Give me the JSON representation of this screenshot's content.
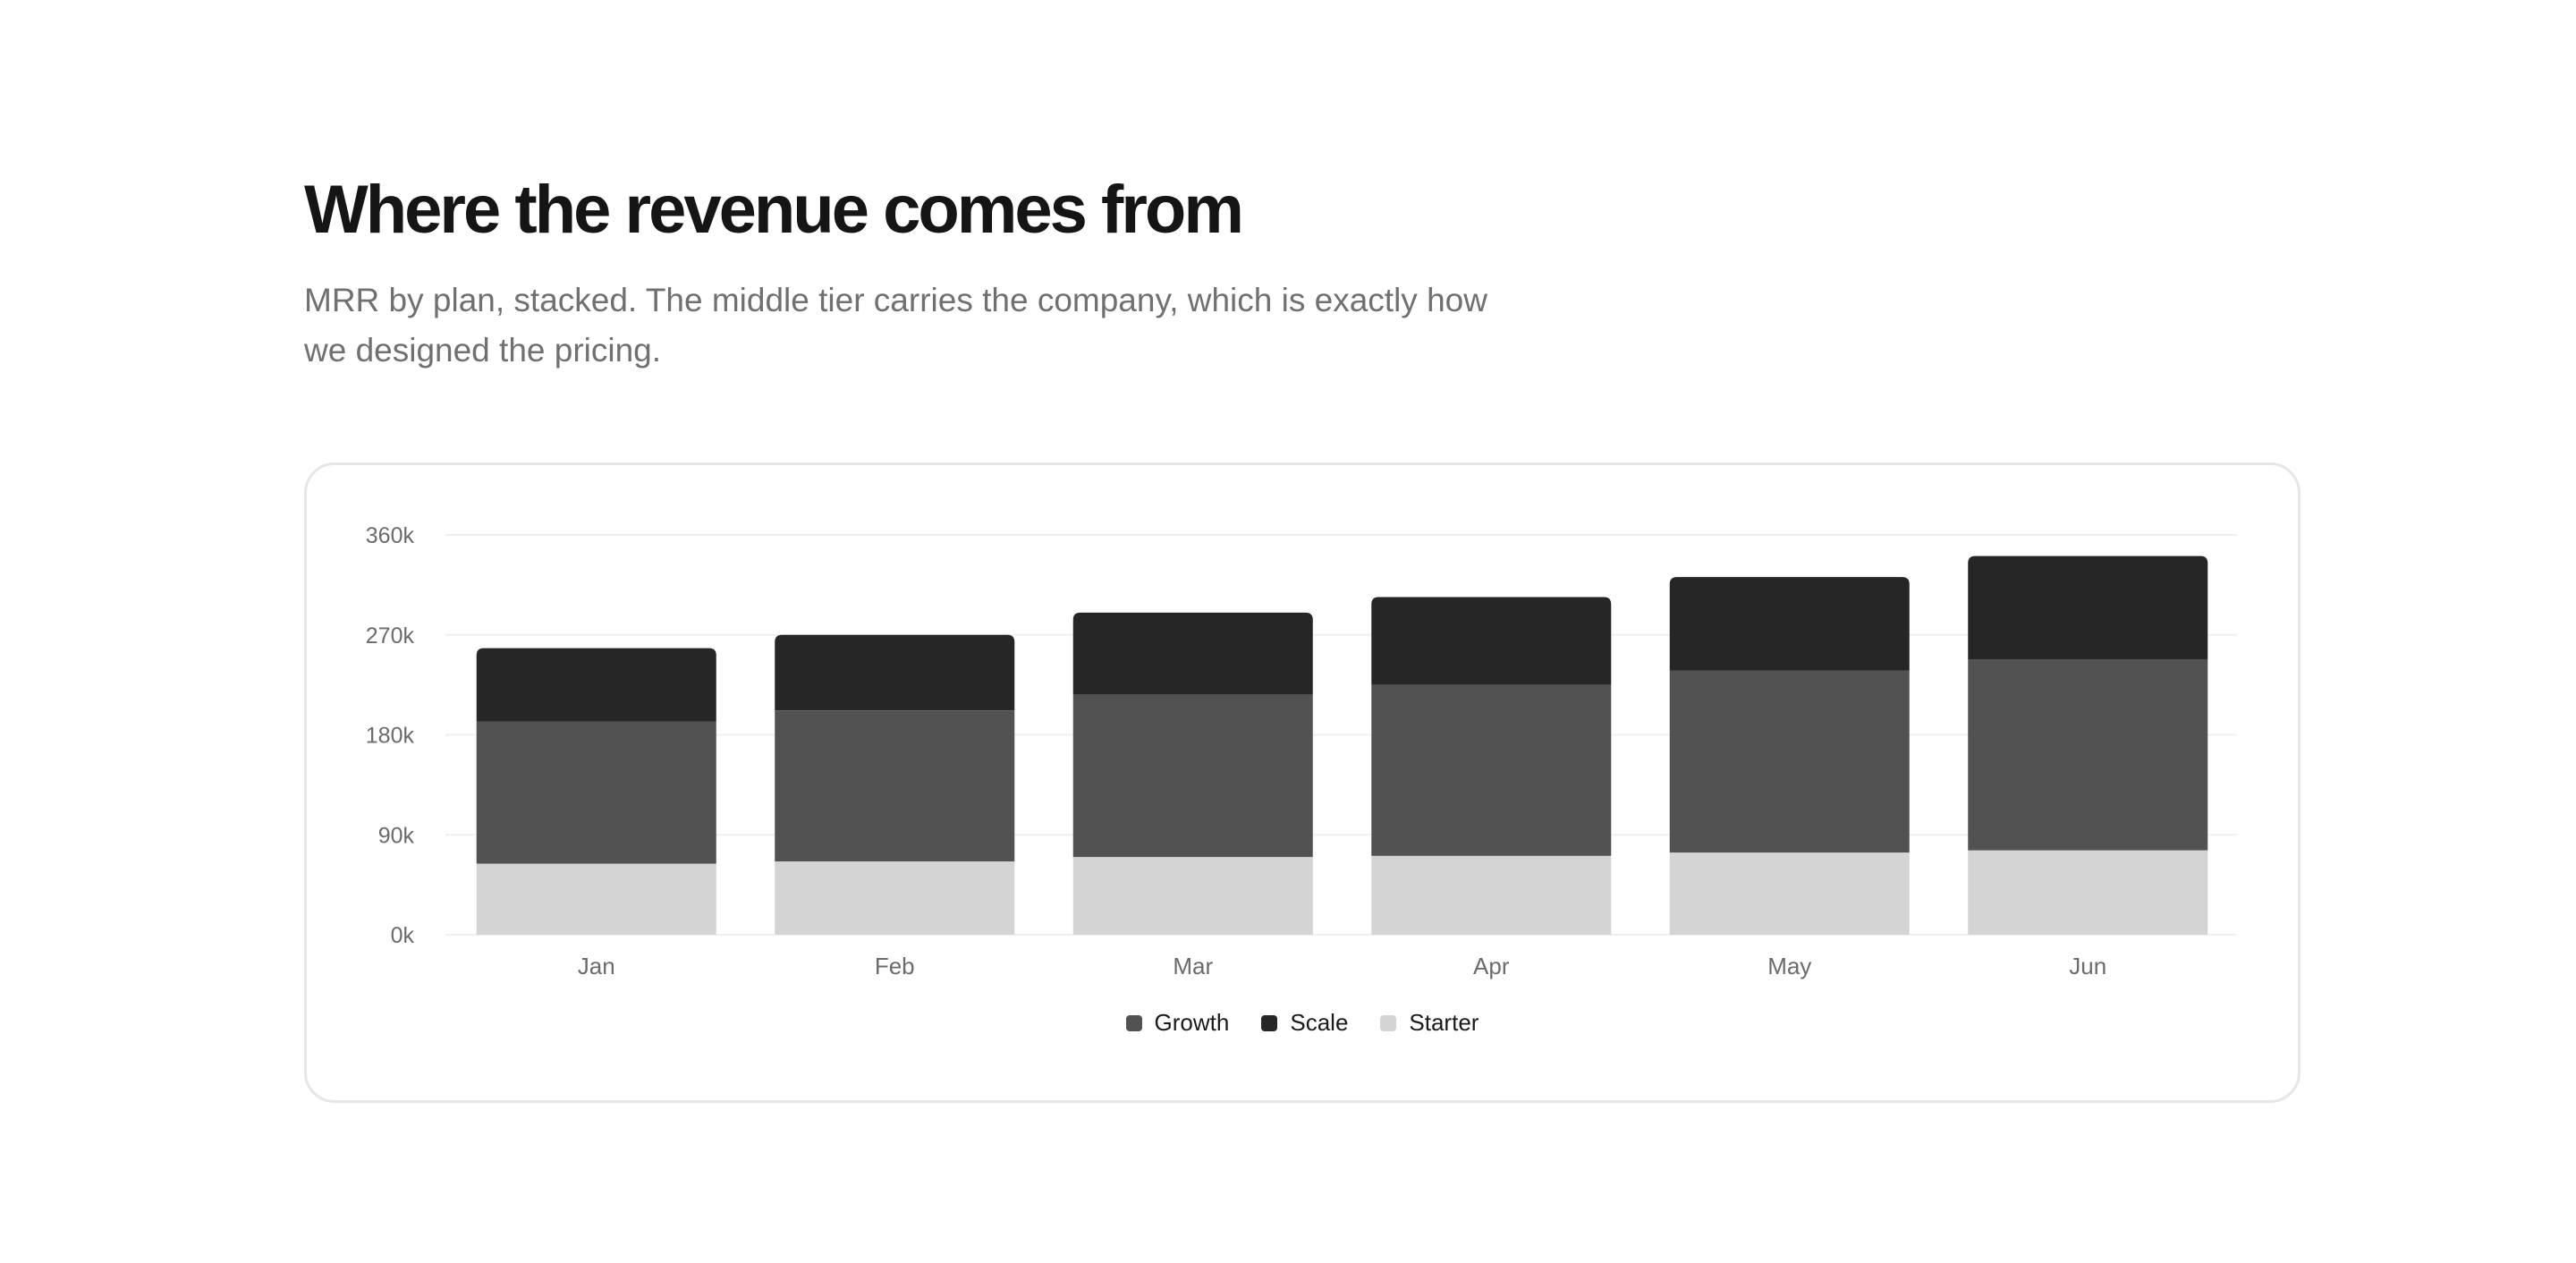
{
  "header": {
    "title": "Where the revenue comes from",
    "subtitle": "MRR by plan, stacked. The middle tier carries the company, which is exactly how we designed the pricing."
  },
  "colors": {
    "Starter": "#d4d4d4",
    "Growth": "#525252",
    "Scale": "#262626",
    "grid": "#efefef"
  },
  "legend": [
    "Growth",
    "Scale",
    "Starter"
  ],
  "chart_data": {
    "type": "bar",
    "stacked": true,
    "categories": [
      "Jan",
      "Feb",
      "Mar",
      "Apr",
      "May",
      "Jun"
    ],
    "series": [
      {
        "name": "Starter",
        "values": [
          64000,
          66000,
          70000,
          71000,
          74000,
          76000
        ]
      },
      {
        "name": "Growth",
        "values": [
          128000,
          136000,
          146000,
          154000,
          164000,
          172000
        ]
      },
      {
        "name": "Scale",
        "values": [
          66000,
          68000,
          74000,
          79000,
          84000,
          93000
        ]
      }
    ],
    "ylim": [
      0,
      360000
    ],
    "yticks": [
      "0k",
      "90k",
      "180k",
      "270k",
      "360k"
    ],
    "grid": true,
    "legend_position": "bottom"
  }
}
